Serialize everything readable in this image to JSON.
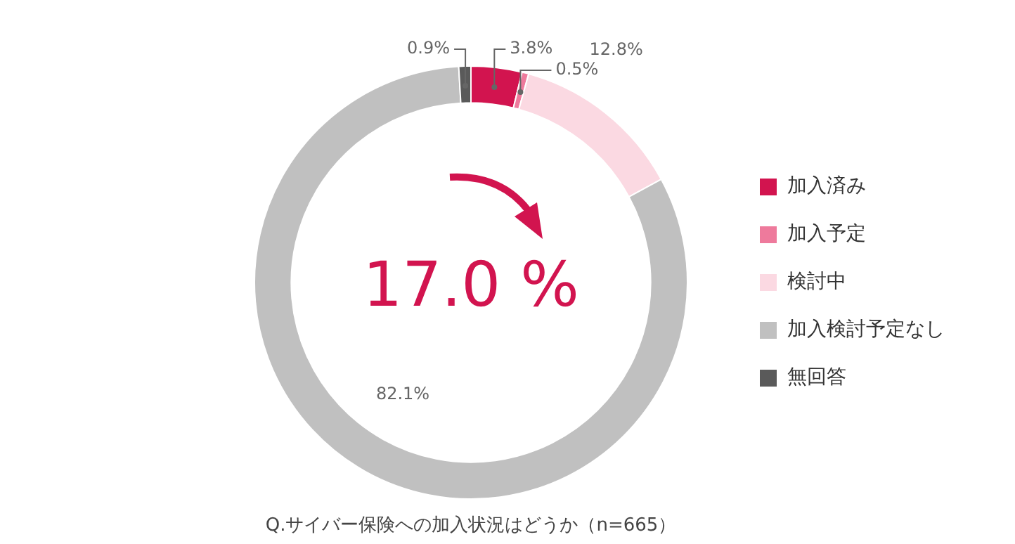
{
  "chart_data": {
    "type": "donut",
    "categories": [
      "加入済み",
      "加入予定",
      "検討中",
      "加入検討予定なし",
      "無回答"
    ],
    "values": [
      3.8,
      0.5,
      12.8,
      82.1,
      0.9
    ],
    "colors": [
      "#d2144f",
      "#ee7a9c",
      "#fbd9e2",
      "#c0c0c0",
      "#5a5a5a"
    ],
    "value_labels": [
      "3.8%",
      "0.5%",
      "12.8%",
      "82.1%",
      "0.9%"
    ],
    "legend": "right",
    "annotations": [
      "17.0 %",
      "Q.サイバー保険への加入状況はどうか（n=665）"
    ]
  }
}
